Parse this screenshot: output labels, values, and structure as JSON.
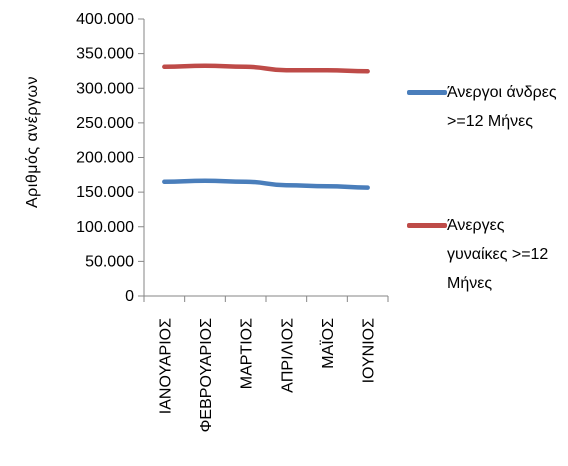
{
  "chart_data": {
    "type": "line",
    "ylabel": "Αριθμός ανέργων",
    "categories": [
      "ΙΑΝΟΥΑΡΙΟΣ",
      "ΦΕΒΡΟΥΑΡΙΟΣ",
      "ΜΑΡΤΙΟΣ",
      "ΑΠΡΙΛΙΟΣ",
      "ΜΑΪΟΣ",
      "ΙΟΥΝΙΟΣ"
    ],
    "yticks": [
      "0",
      "50.000",
      "100.000",
      "150.000",
      "200.000",
      "250.000",
      "300.000",
      "350.000",
      "400.000"
    ],
    "ylim": [
      0,
      400000
    ],
    "grid": false,
    "legend_position": "right",
    "series": [
      {
        "name_lines": [
          "Άνεργοι άνδρες",
          ">=12 Μήνες"
        ],
        "color": "#4a7ebb",
        "values": [
          165000,
          166500,
          165000,
          160000,
          158500,
          156500
        ]
      },
      {
        "name_lines": [
          "Άνεργες",
          "γυναίκες >=12",
          "Μήνες"
        ],
        "color": "#be4b48",
        "values": [
          331000,
          332500,
          331000,
          326000,
          326000,
          324500
        ]
      }
    ]
  }
}
